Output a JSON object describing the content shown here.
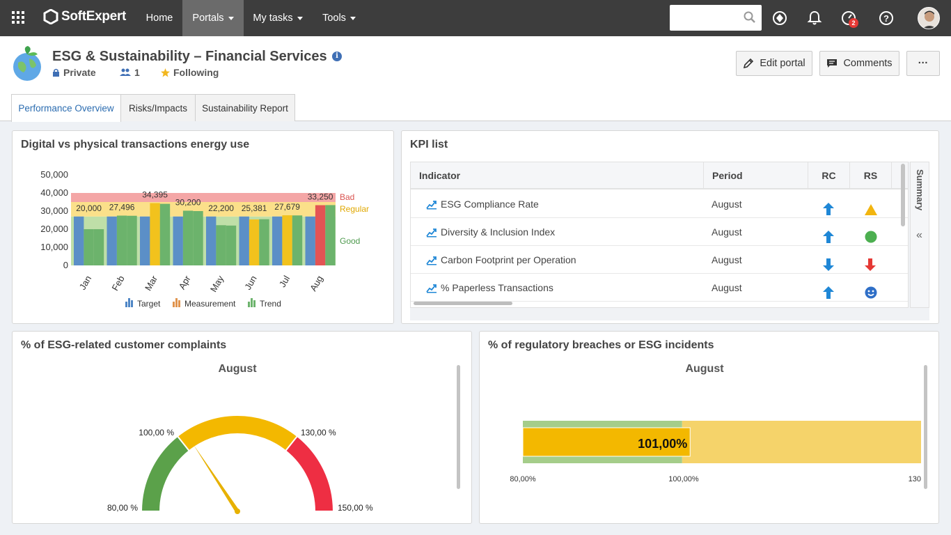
{
  "nav": {
    "logo": "SoftExpert",
    "items": [
      {
        "label": "Home",
        "caret": false
      },
      {
        "label": "Portals",
        "caret": true
      },
      {
        "label": "My tasks",
        "caret": true
      },
      {
        "label": "Tools",
        "caret": true
      }
    ],
    "search_placeholder": "",
    "notification_badge": "2"
  },
  "header": {
    "title": "ESG & Sustainability – Financial Services",
    "privacy": "Private",
    "members": "1",
    "following": "Following",
    "edit_button": "Edit portal",
    "comments_button": "Comments",
    "more_button": "···"
  },
  "tabs": [
    "Performance Overview",
    "Risks/Impacts",
    "Sustainability Report"
  ],
  "energy_panel": {
    "title": "Digital vs physical transactions energy use",
    "zone_labels": {
      "bad": "Bad",
      "regular": "Regular",
      "good": "Good"
    },
    "zone_colors": {
      "bad": "#f4a6a6",
      "regular": "#fbe08a",
      "good": "#bfdfa8"
    },
    "legend": [
      "Target",
      "Measurement",
      "Trend"
    ],
    "legend_colors": [
      "#4f86c6",
      "#e0944e",
      "#6cb36c"
    ]
  },
  "chart_data": {
    "type": "bar",
    "categories": [
      "Jan",
      "Feb",
      "Mar",
      "Apr",
      "May",
      "Jun",
      "Jul",
      "Aug"
    ],
    "series": [
      {
        "name": "Target",
        "values": [
          27000,
          27000,
          27000,
          27000,
          27000,
          27000,
          27000,
          27000
        ],
        "color": "#5b8fc7"
      },
      {
        "name": "Measurement",
        "values": [
          20000,
          27496,
          34395,
          30200,
          22200,
          25381,
          27679,
          33250
        ],
        "colors": [
          "#6cb36c",
          "#6cb36c",
          "#f2c21d",
          "#6cb36c",
          "#6cb36c",
          "#f2c21d",
          "#f2c21d",
          "#e35454"
        ]
      },
      {
        "name": "Trend",
        "values": [
          20000,
          27400,
          34000,
          30000,
          22000,
          25500,
          27600,
          33300
        ],
        "color": "#6cb36c"
      }
    ],
    "data_labels": [
      "20,000",
      "27,496",
      "34,395",
      "30,200",
      "22,200",
      "25,381",
      "27,679",
      "33,250"
    ],
    "yticks": [
      "0",
      "10,000",
      "20,000",
      "30,000",
      "40,000",
      "50,000"
    ],
    "ylim": [
      0,
      50000
    ],
    "zones": {
      "good": [
        0,
        27000
      ],
      "regular": [
        27000,
        35000
      ],
      "bad": [
        35000,
        40000
      ]
    }
  },
  "kpi": {
    "title": "KPI list",
    "columns": [
      "Indicator",
      "Period",
      "RC",
      "RS"
    ],
    "rows": [
      {
        "indicator": "ESG Compliance Rate",
        "period": "August",
        "rc": "up",
        "rs": "warning-triangle"
      },
      {
        "indicator": "Diversity & Inclusion Index",
        "period": "August",
        "rc": "up",
        "rs": "green-circle"
      },
      {
        "indicator": "Carbon Footprint per Operation",
        "period": "August",
        "rc": "down",
        "rs": "red-down-arrow"
      },
      {
        "indicator": "% Paperless Transactions",
        "period": "August",
        "rc": "up",
        "rs": "smiley-face"
      }
    ],
    "summary_label": "Summary"
  },
  "complaints": {
    "title": "% of ESG-related customer complaints",
    "subtitle": "August",
    "labels": [
      "80,00 %",
      "100,00 %",
      "130,00 %",
      "150,00 %"
    ],
    "value": 102,
    "range": [
      80,
      150
    ]
  },
  "breaches": {
    "title": "% of regulatory breaches or ESG incidents",
    "subtitle": "August",
    "value_label": "101,00%",
    "value": 101,
    "ticks": [
      "80,00%",
      "100,00%",
      "130"
    ]
  }
}
